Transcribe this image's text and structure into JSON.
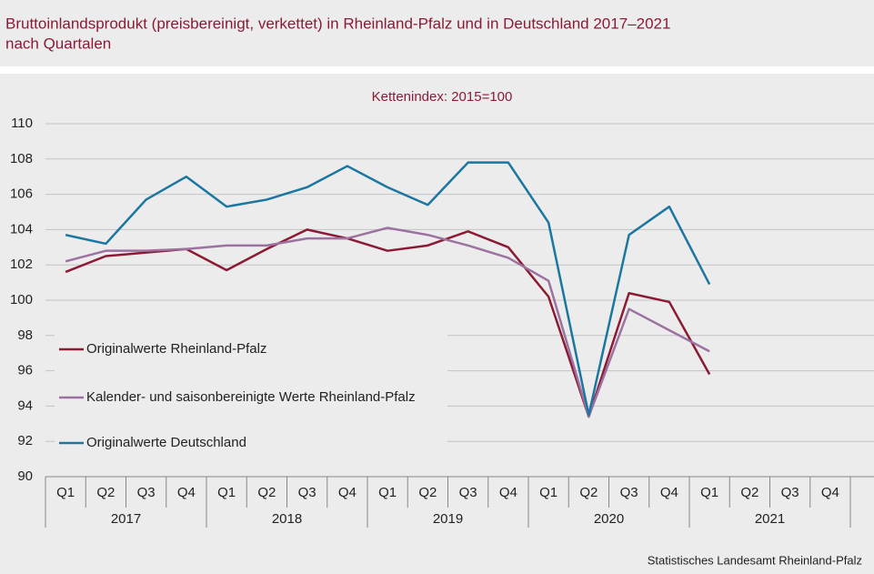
{
  "chart_data": {
    "type": "line",
    "title": "Bruttoinlandsprodukt (preisbereinigt, verkettet) in Rheinland-Pfalz und in Deutschland 2017–2021",
    "title_line2": "nach Quartalen",
    "subtitle": "Kettenindex:  2015=100",
    "source": "Statistisches Landesamt Rheinland-Pfalz",
    "categories": [
      "Q1",
      "Q2",
      "Q3",
      "Q4",
      "Q1",
      "Q2",
      "Q3",
      "Q4",
      "Q1",
      "Q2",
      "Q3",
      "Q4",
      "Q1",
      "Q2",
      "Q3",
      "Q4",
      "Q1",
      "Q2",
      "Q3",
      "Q4"
    ],
    "years": [
      "2017",
      "2018",
      "2019",
      "2020",
      "2021"
    ],
    "ylim": [
      90,
      110
    ],
    "yticks": [
      90,
      92,
      94,
      96,
      98,
      100,
      102,
      104,
      106,
      108,
      110
    ],
    "grid": true,
    "legend": "lower-left",
    "series": [
      {
        "name": "Originalwerte Rheinland-Pfalz",
        "color": "#8b1a35",
        "values": [
          101.6,
          102.5,
          102.7,
          102.9,
          101.7,
          102.9,
          104.0,
          103.5,
          102.8,
          103.1,
          103.9,
          103.0,
          100.2,
          93.4,
          100.4,
          99.9,
          95.8,
          null,
          null,
          null
        ]
      },
      {
        "name": "Kalender- und saisonbereinigte Werte Rheinland-Pfalz",
        "color": "#9b72a0",
        "values": [
          102.2,
          102.8,
          102.8,
          102.9,
          103.1,
          103.1,
          103.5,
          103.5,
          104.1,
          103.7,
          103.1,
          102.4,
          101.1,
          93.4,
          99.5,
          98.3,
          97.1,
          null,
          null,
          null
        ]
      },
      {
        "name": "Originalwerte Deutschland",
        "color": "#1b76a0",
        "values": [
          103.7,
          103.2,
          105.7,
          107.0,
          105.3,
          105.7,
          106.4,
          107.6,
          106.4,
          105.4,
          107.8,
          107.8,
          104.4,
          93.5,
          103.7,
          105.3,
          100.9,
          null,
          null,
          null
        ]
      }
    ]
  }
}
